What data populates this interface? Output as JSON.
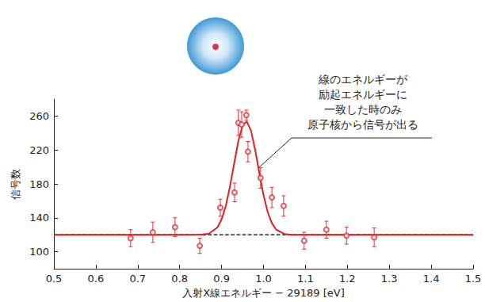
{
  "chart_data": {
    "type": "scatter",
    "x_label": "入射X線エネルギー − 29189 [eV]",
    "y_label": "信号数",
    "annotation": "線のエネルギーが\n励起エネルギーに\n一致した時のみ\n原子核から信号が出る",
    "xlim": [
      0.5,
      1.5
    ],
    "xticks": [
      0.5,
      0.6,
      0.7,
      0.8,
      0.9,
      {
        "value": 1,
        "label": "1.0"
      },
      1.1,
      1.2,
      1.3,
      1.4,
      1.5
    ],
    "ylim": [
      80,
      280
    ],
    "yticks": [
      100,
      140,
      180,
      220,
      260
    ],
    "grid": false,
    "series": [
      {
        "type": "line",
        "color": "#000000",
        "line_style": "dashed",
        "x": [
          0.5,
          1.5
        ],
        "values": [
          120,
          120
        ]
      },
      {
        "type": "line",
        "color": "#e02020",
        "line_style": "solid",
        "x": [
          0.5,
          0.8,
          0.85,
          0.87,
          0.89,
          0.9,
          0.91,
          0.92,
          0.93,
          0.94,
          0.95,
          0.96,
          0.97,
          0.98,
          0.99,
          1.0,
          1.01,
          1.02,
          1.03,
          1.05,
          1.07,
          1.1,
          1.5
        ],
        "values": [
          120,
          120,
          120.1,
          121.3,
          128.6,
          138.1,
          154.0,
          176.8,
          204.1,
          230.5,
          249.0,
          253.7,
          243.0,
          220.5,
          192.9,
          166.9,
          146.8,
          133.6,
          126.2,
          120.9,
          120,
          120,
          120
        ]
      },
      {
        "type": "scatter",
        "color": "#d9343a",
        "marker": "open_circle",
        "x": [
          0.683,
          0.736,
          0.789,
          0.848,
          0.897,
          0.931,
          0.94,
          0.948,
          0.959,
          0.963,
          0.993,
          1.02,
          1.048,
          1.097,
          1.15,
          1.198,
          1.264
        ],
        "values": [
          116,
          123,
          129,
          107,
          152,
          170,
          252,
          250,
          261,
          218,
          187,
          164,
          154,
          113,
          126,
          119,
          117
        ],
        "errors": [
          10,
          12,
          11,
          9,
          10,
          11,
          15,
          15,
          6,
          12,
          12,
          12,
          12,
          10,
          10,
          10,
          11
        ]
      }
    ]
  }
}
